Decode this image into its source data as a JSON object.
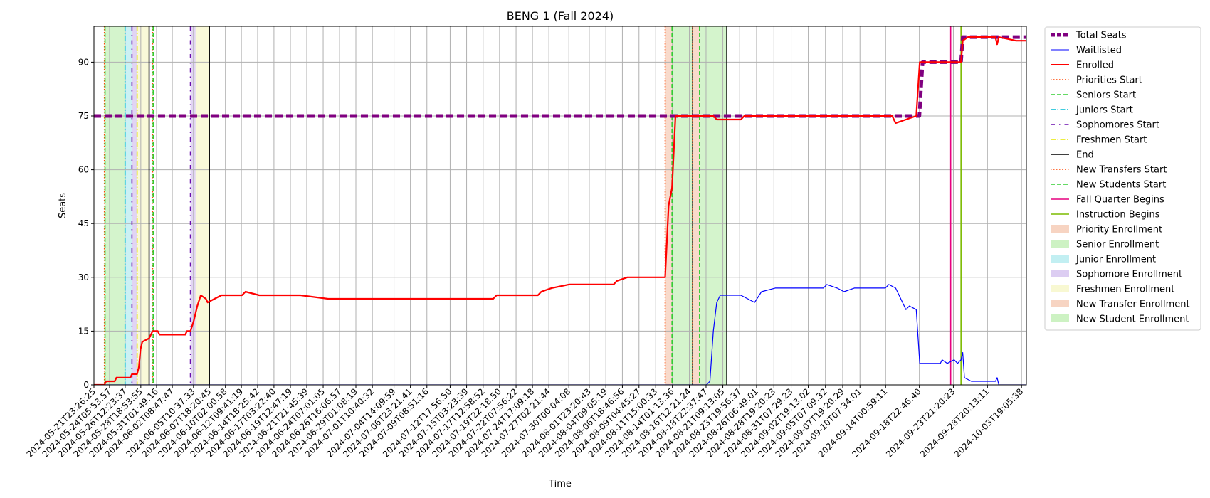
{
  "chart_data": {
    "type": "line",
    "title": "BENG 1 (Fall 2024)",
    "xlabel": "Time",
    "ylabel": "Seats",
    "x_range": [
      "2024-05-21T23:26:25",
      "2024-10-04T12:00:00"
    ],
    "ylim": [
      0,
      100
    ],
    "y_ticks": [
      0,
      15,
      30,
      45,
      60,
      75,
      90
    ],
    "x_tick_labels": [
      "2024-05-21T23:26:25",
      "2024-05-24T05:53:57",
      "2024-05-26T12:23:37",
      "2024-05-28T18:53:55",
      "2024-05-31T01:49:16",
      "2024-06-02T08:47:47",
      "2024-06-05T10:37:33",
      "2024-06-07T18:20:45",
      "2024-06-10T02:00:58",
      "2024-06-12T09:41:19",
      "2024-06-14T18:25:42",
      "2024-06-17T03:22:40",
      "2024-06-19T12:47:19",
      "2024-06-21T21:45:39",
      "2024-06-24T07:01:05",
      "2024-06-26T16:06:57",
      "2024-06-29T01:08:19",
      "2024-07-01T10:40:32",
      "2024-07-04T14:09:59",
      "2024-07-06T23:21:41",
      "2024-07-09T08:51:16",
      "2024-07-12T17:56:50",
      "2024-07-15T03:23:39",
      "2024-07-17T12:58:52",
      "2024-07-19T22:18:50",
      "2024-07-22T07:56:22",
      "2024-07-24T17:09:18",
      "2024-07-27T02:21:44",
      "2024-07-30T00:04:08",
      "2024-08-01T23:20:43",
      "2024-08-04T09:05:19",
      "2024-08-06T18:46:56",
      "2024-08-09T04:45:27",
      "2024-08-11T15:00:33",
      "2024-08-14T01:13:36",
      "2024-08-16T12:21:24",
      "2024-08-18T22:37:47",
      "2024-08-21T09:13:05",
      "2024-08-23T19:56:37",
      "2024-08-26T06:49:01",
      "2024-08-28T19:20:23",
      "2024-08-31T07:29:23",
      "2024-09-02T19:13:02",
      "2024-09-05T07:09:32",
      "2024-09-07T19:20:29",
      "2024-09-10T07:34:01",
      "2024-09-14T00:59:11",
      "2024-09-18T22:46:40",
      "2024-09-23T21:20:23",
      "2024-09-28T20:13:11",
      "2024-10-03T19:05:38"
    ],
    "grid": true,
    "legend_position": "outside-right",
    "colors": {
      "total": "#800080",
      "waitlisted": "#0000ff",
      "enrolled": "#ff0000",
      "priority": "#ff4500",
      "senior": "#32cd32",
      "junior": "#00bcd4",
      "sophomore": "#6a0dad",
      "freshman": "#e6e600",
      "end": "#000000",
      "fall_quarter": "#e6007e",
      "instruction": "#7cbb00"
    },
    "series": [
      {
        "name": "Total Seats",
        "points": [
          [
            "2024-05-21T23:26:25",
            75
          ],
          [
            "2024-09-18T22:46:40",
            75
          ],
          [
            "2024-09-19T10:00:00",
            90
          ],
          [
            "2024-09-25T00:00:00",
            90
          ],
          [
            "2024-09-25T06:00:00",
            97
          ],
          [
            "2024-10-04T12:00:00",
            97
          ]
        ]
      },
      {
        "name": "Waitlisted",
        "points": [
          [
            "2024-05-21T23:26:25",
            0
          ],
          [
            "2024-08-19T00:00:00",
            0
          ],
          [
            "2024-08-19T12:00:00",
            1
          ],
          [
            "2024-08-20T00:00:00",
            15
          ],
          [
            "2024-08-20T12:00:00",
            23
          ],
          [
            "2024-08-21T00:00:00",
            25
          ],
          [
            "2024-08-22T00:00:00",
            25
          ],
          [
            "2024-08-24T00:00:00",
            25
          ],
          [
            "2024-08-25T00:00:00",
            24
          ],
          [
            "2024-08-26T00:00:00",
            23
          ],
          [
            "2024-08-27T00:00:00",
            26
          ],
          [
            "2024-08-29T00:00:00",
            27
          ],
          [
            "2024-09-05T00:00:00",
            27
          ],
          [
            "2024-09-05T12:00:00",
            28
          ],
          [
            "2024-09-07T00:00:00",
            27
          ],
          [
            "2024-09-08T00:00:00",
            26
          ],
          [
            "2024-09-09T12:00:00",
            27
          ],
          [
            "2024-09-14T00:00:00",
            27
          ],
          [
            "2024-09-14T12:00:00",
            28
          ],
          [
            "2024-09-15T12:00:00",
            27
          ],
          [
            "2024-09-16T00:00:00",
            25
          ],
          [
            "2024-09-16T12:00:00",
            23
          ],
          [
            "2024-09-17T00:00:00",
            21
          ],
          [
            "2024-09-17T12:00:00",
            22
          ],
          [
            "2024-09-18T12:00:00",
            21
          ],
          [
            "2024-09-19T00:00:00",
            6
          ],
          [
            "2024-09-22T00:00:00",
            6
          ],
          [
            "2024-09-22T06:00:00",
            7
          ],
          [
            "2024-09-23T00:00:00",
            6
          ],
          [
            "2024-09-24T00:00:00",
            7
          ],
          [
            "2024-09-24T12:00:00",
            6
          ],
          [
            "2024-09-25T00:00:00",
            7
          ],
          [
            "2024-09-25T06:00:00",
            9
          ],
          [
            "2024-09-25T12:00:00",
            2
          ],
          [
            "2024-09-26T12:00:00",
            1
          ],
          [
            "2024-09-30T00:00:00",
            1
          ],
          [
            "2024-09-30T06:00:00",
            2
          ],
          [
            "2024-09-30T12:00:00",
            0
          ],
          [
            "2024-10-04T12:00:00",
            0
          ]
        ]
      },
      {
        "name": "Enrolled",
        "points": [
          [
            "2024-05-21T23:26:25",
            0
          ],
          [
            "2024-05-23T12:00:00",
            0
          ],
          [
            "2024-05-23T18:00:00",
            1
          ],
          [
            "2024-05-25T00:00:00",
            1
          ],
          [
            "2024-05-25T06:00:00",
            2
          ],
          [
            "2024-05-27T06:00:00",
            2
          ],
          [
            "2024-05-27T12:00:00",
            3
          ],
          [
            "2024-05-28T06:00:00",
            3
          ],
          [
            "2024-05-28T12:00:00",
            5
          ],
          [
            "2024-05-28T18:00:00",
            10
          ],
          [
            "2024-05-29T00:00:00",
            12
          ],
          [
            "2024-05-30T00:00:00",
            13
          ],
          [
            "2024-05-30T12:00:00",
            15
          ],
          [
            "2024-05-31T06:00:00",
            15
          ],
          [
            "2024-05-31T12:00:00",
            14
          ],
          [
            "2024-06-04T06:00:00",
            14
          ],
          [
            "2024-06-04T12:00:00",
            15
          ],
          [
            "2024-06-05T00:00:00",
            15
          ],
          [
            "2024-06-05T12:00:00",
            18
          ],
          [
            "2024-06-06T00:00:00",
            22
          ],
          [
            "2024-06-06T12:00:00",
            25
          ],
          [
            "2024-06-07T06:00:00",
            24
          ],
          [
            "2024-06-07T12:00:00",
            23
          ],
          [
            "2024-06-08T12:00:00",
            24
          ],
          [
            "2024-06-09T12:00:00",
            25
          ],
          [
            "2024-06-12T12:00:00",
            25
          ],
          [
            "2024-06-13T00:00:00",
            26
          ],
          [
            "2024-06-15T00:00:00",
            25
          ],
          [
            "2024-06-21T00:00:00",
            25
          ],
          [
            "2024-06-25T00:00:00",
            24
          ],
          [
            "2024-07-19T00:00:00",
            24
          ],
          [
            "2024-07-19T12:00:00",
            25
          ],
          [
            "2024-07-25T12:00:00",
            25
          ],
          [
            "2024-07-26T00:00:00",
            26
          ],
          [
            "2024-07-27T12:00:00",
            27
          ],
          [
            "2024-07-30T00:00:00",
            28
          ],
          [
            "2024-08-05T12:00:00",
            28
          ],
          [
            "2024-08-06T00:00:00",
            29
          ],
          [
            "2024-08-07T12:00:00",
            30
          ],
          [
            "2024-08-13T00:00:00",
            30
          ],
          [
            "2024-08-13T12:00:00",
            50
          ],
          [
            "2024-08-14T00:00:00",
            55
          ],
          [
            "2024-08-14T12:00:00",
            75
          ],
          [
            "2024-08-20T00:00:00",
            75
          ],
          [
            "2024-08-20T12:00:00",
            74
          ],
          [
            "2024-08-24T00:00:00",
            74
          ],
          [
            "2024-08-24T12:00:00",
            75
          ],
          [
            "2024-09-15T00:00:00",
            75
          ],
          [
            "2024-09-15T12:00:00",
            73
          ],
          [
            "2024-09-17T00:00:00",
            74
          ],
          [
            "2024-09-18T12:00:00",
            75
          ],
          [
            "2024-09-19T00:00:00",
            90
          ],
          [
            "2024-09-25T00:00:00",
            90
          ],
          [
            "2024-09-25T06:00:00",
            96
          ],
          [
            "2024-09-26T00:00:00",
            97
          ],
          [
            "2024-09-30T00:00:00",
            97
          ],
          [
            "2024-09-30T06:00:00",
            95
          ],
          [
            "2024-09-30T12:00:00",
            97
          ],
          [
            "2024-10-03T00:00:00",
            96
          ],
          [
            "2024-10-04T12:00:00",
            96
          ]
        ]
      }
    ],
    "periods": [
      {
        "name": "Priority Enrollment",
        "start": "2024-05-23T12:00:00",
        "end": "2024-05-23T14:00:00",
        "color": "#f4c2a8"
      },
      {
        "name": "Senior Enrollment",
        "start": "2024-05-23T14:00:00",
        "end": "2024-05-26T12:00:00",
        "color": "#b8ecaa"
      },
      {
        "name": "Junior Enrollment",
        "start": "2024-05-26T12:00:00",
        "end": "2024-05-27T12:00:00",
        "color": "#a8e8ec"
      },
      {
        "name": "Sophomore Enrollment",
        "start": "2024-05-27T12:00:00",
        "end": "2024-05-28T06:00:00",
        "color": "#cdb8ec"
      },
      {
        "name": "Freshmen Enrollment",
        "start": "2024-05-28T06:00:00",
        "end": "2024-05-30T00:00:00",
        "color": "#f5f5bf"
      },
      {
        "name": "Sophomore Enrollment",
        "start": "2024-06-05T00:00:00",
        "end": "2024-06-05T18:00:00",
        "color": "#cdb8ec"
      },
      {
        "name": "Freshmen Enrollment",
        "start": "2024-06-05T18:00:00",
        "end": "2024-06-07T18:00:00",
        "color": "#f5f5bf"
      },
      {
        "name": "New Transfer Enrollment",
        "start": "2024-08-13T00:00:00",
        "end": "2024-08-14T00:00:00",
        "color": "#f4c2a8"
      },
      {
        "name": "New Student Enrollment",
        "start": "2024-08-14T00:00:00",
        "end": "2024-08-17T00:00:00",
        "color": "#b8ecaa"
      },
      {
        "name": "New Transfer Enrollment",
        "start": "2024-08-17T00:00:00",
        "end": "2024-08-18T00:00:00",
        "color": "#f4c2a8"
      },
      {
        "name": "New Student Enrollment",
        "start": "2024-08-18T00:00:00",
        "end": "2024-08-21T23:00:00",
        "color": "#b8ecaa"
      }
    ],
    "markers": [
      {
        "name": "Priorities Start",
        "t": "2024-05-23T12:00:00",
        "style": "dotted",
        "color": "#ff4500"
      },
      {
        "name": "Seniors Start",
        "t": "2024-05-23T14:00:00",
        "style": "dashed",
        "color": "#32cd32"
      },
      {
        "name": "Juniors Start",
        "t": "2024-05-26T12:00:00",
        "style": "dashdot",
        "color": "#00bcd4"
      },
      {
        "name": "Sophomores Start",
        "t": "2024-05-27T12:00:00",
        "style": "dashdot-sparse",
        "color": "#6a0dad"
      },
      {
        "name": "Freshmen Start",
        "t": "2024-05-28T06:00:00",
        "style": "dashdot",
        "color": "#e6e600"
      },
      {
        "name": "End",
        "t": "2024-05-30T00:00:00",
        "style": "solid",
        "color": "#000000"
      },
      {
        "name": "Priorities Start",
        "t": "2024-05-30T12:00:00",
        "style": "dotted",
        "color": "#ff4500"
      },
      {
        "name": "Seniors Start",
        "t": "2024-05-30T14:00:00",
        "style": "dashed",
        "color": "#32cd32"
      },
      {
        "name": "Sophomores Start",
        "t": "2024-06-05T00:00:00",
        "style": "dashdot-sparse",
        "color": "#6a0dad"
      },
      {
        "name": "End",
        "t": "2024-06-07T18:00:00",
        "style": "solid",
        "color": "#000000"
      },
      {
        "name": "New Transfers Start",
        "t": "2024-08-13T00:00:00",
        "style": "dotted",
        "color": "#ff4500"
      },
      {
        "name": "New Students Start",
        "t": "2024-08-14T00:00:00",
        "style": "dashed",
        "color": "#32cd32"
      },
      {
        "name": "End",
        "t": "2024-08-17T00:00:00",
        "style": "solid",
        "color": "#000000"
      },
      {
        "name": "New Transfers Start",
        "t": "2024-08-17T00:00:00",
        "style": "dotted",
        "color": "#ff4500"
      },
      {
        "name": "New Students Start",
        "t": "2024-08-18T00:00:00",
        "style": "dashed",
        "color": "#32cd32"
      },
      {
        "name": "End",
        "t": "2024-08-21T23:00:00",
        "style": "solid",
        "color": "#000000"
      },
      {
        "name": "Fall Quarter Begins",
        "t": "2024-09-23T12:00:00",
        "style": "solid",
        "color": "#e6007e"
      },
      {
        "name": "Instruction Begins",
        "t": "2024-09-25T00:00:00",
        "style": "solid",
        "color": "#7cbb00"
      }
    ],
    "legend": [
      {
        "label": "Total Seats",
        "kind": "line",
        "color": "#800080",
        "style": "dashed",
        "width": 5
      },
      {
        "label": "Waitlisted",
        "kind": "line",
        "color": "#0000ff",
        "style": "solid",
        "width": 1
      },
      {
        "label": "Enrolled",
        "kind": "line",
        "color": "#ff0000",
        "style": "solid",
        "width": 2
      },
      {
        "label": "Priorities Start",
        "kind": "line",
        "color": "#ff4500",
        "style": "dotted",
        "width": 1.5
      },
      {
        "label": "Seniors Start",
        "kind": "line",
        "color": "#32cd32",
        "style": "dashed",
        "width": 1.5
      },
      {
        "label": "Juniors Start",
        "kind": "line",
        "color": "#00bcd4",
        "style": "dashdot",
        "width": 1.5
      },
      {
        "label": "Sophomores Start",
        "kind": "line",
        "color": "#6a0dad",
        "style": "dashdot-sparse",
        "width": 1.5
      },
      {
        "label": "Freshmen Start",
        "kind": "line",
        "color": "#e6e600",
        "style": "dashdot",
        "width": 1.5
      },
      {
        "label": "End",
        "kind": "line",
        "color": "#000000",
        "style": "solid",
        "width": 1.5
      },
      {
        "label": "New Transfers Start",
        "kind": "line",
        "color": "#ff4500",
        "style": "dotted",
        "width": 1.5
      },
      {
        "label": "New Students Start",
        "kind": "line",
        "color": "#32cd32",
        "style": "dashed",
        "width": 1.5
      },
      {
        "label": "Fall Quarter Begins",
        "kind": "line",
        "color": "#e6007e",
        "style": "solid",
        "width": 1.5
      },
      {
        "label": "Instruction Begins",
        "kind": "line",
        "color": "#7cbb00",
        "style": "solid",
        "width": 1.5
      },
      {
        "label": "Priority Enrollment",
        "kind": "patch",
        "color": "#f4c2a8"
      },
      {
        "label": "Senior Enrollment",
        "kind": "patch",
        "color": "#b8ecaa"
      },
      {
        "label": "Junior Enrollment",
        "kind": "patch",
        "color": "#a8e8ec"
      },
      {
        "label": "Sophomore Enrollment",
        "kind": "patch",
        "color": "#cdb8ec"
      },
      {
        "label": "Freshmen Enrollment",
        "kind": "patch",
        "color": "#f5f5bf"
      },
      {
        "label": "New Transfer Enrollment",
        "kind": "patch",
        "color": "#f4c2a8"
      },
      {
        "label": "New Student Enrollment",
        "kind": "patch",
        "color": "#b8ecaa"
      }
    ]
  }
}
